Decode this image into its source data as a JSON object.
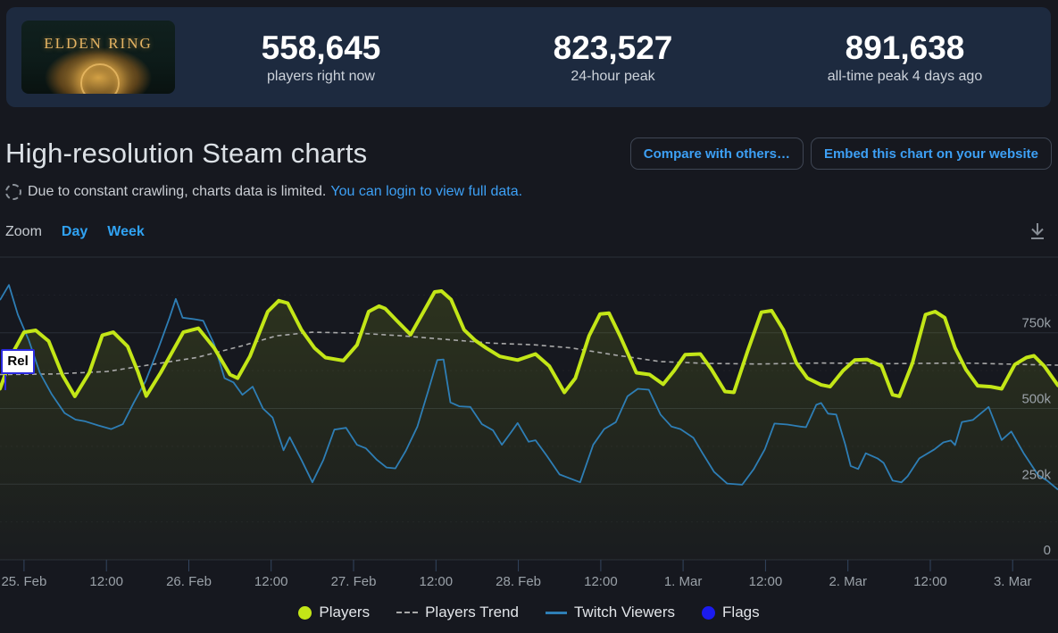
{
  "header": {
    "banner": {
      "title": "ELDEN RING"
    },
    "stats": [
      {
        "value": "558,645",
        "label": "players right now"
      },
      {
        "value": "823,527",
        "label": "24-hour peak"
      },
      {
        "value": "891,638",
        "label": "all-time peak 4 days ago"
      }
    ]
  },
  "page": {
    "title": "High-resolution Steam charts",
    "buttons": [
      "Compare with others…",
      "Embed this chart on your website"
    ],
    "notice": {
      "icon": "dashed-circle-icon",
      "text": "Due to constant crawling, charts data is limited.",
      "link": "You can login to view full data."
    },
    "zoom": {
      "label": "Zoom",
      "options": [
        "Day",
        "Week"
      ]
    },
    "icons": {
      "download": "arrow-down-to-line"
    }
  },
  "chart_data": {
    "type": "line",
    "title": "",
    "xlabel": "",
    "ylabel": "",
    "x_unit": "hours since 25 Feb 00:00",
    "y_unit": "thousands",
    "x_range_hours": [
      -3.5,
      150.6
    ],
    "ylim": [
      0,
      1000
    ],
    "grid": true,
    "legend_position": "bottom",
    "yticks": [
      {
        "v": 0,
        "label": "0"
      },
      {
        "v": 250,
        "label": "250k"
      },
      {
        "v": 500,
        "label": "500k"
      },
      {
        "v": 750,
        "label": "750k"
      },
      {
        "v": 1000,
        "label": ""
      }
    ],
    "yticks_minor": [
      125,
      375,
      625,
      875
    ],
    "xticks": [
      {
        "h": 0,
        "label": "25. Feb"
      },
      {
        "h": 12,
        "label": "12:00"
      },
      {
        "h": 24,
        "label": "26. Feb"
      },
      {
        "h": 36,
        "label": "12:00"
      },
      {
        "h": 48,
        "label": "27. Feb"
      },
      {
        "h": 60,
        "label": "12:00"
      },
      {
        "h": 72,
        "label": "28. Feb"
      },
      {
        "h": 84,
        "label": "12:00"
      },
      {
        "h": 96,
        "label": "1. Mar"
      },
      {
        "h": 108,
        "label": "12:00"
      },
      {
        "h": 120,
        "label": "2. Mar"
      },
      {
        "h": 132,
        "label": "12:00"
      },
      {
        "h": 144,
        "label": "3. Mar"
      }
    ],
    "colors": {
      "players": "#c3e617",
      "players_trend": "#a8a8a8",
      "twitch_viewers": "#2e7eb5",
      "flags": "#1b1bef"
    },
    "flags": [
      {
        "label": "Rel",
        "hour": -2.8
      }
    ],
    "series": {
      "players": [
        [
          -3.5,
          565
        ],
        [
          -1.5,
          690
        ],
        [
          0,
          752
        ],
        [
          1.7,
          758
        ],
        [
          3.6,
          722
        ],
        [
          5.6,
          610
        ],
        [
          7.4,
          540
        ],
        [
          9.5,
          618
        ],
        [
          11.4,
          742
        ],
        [
          13,
          752
        ],
        [
          15.1,
          705
        ],
        [
          16.6,
          620
        ],
        [
          17.8,
          541
        ],
        [
          19.9,
          618
        ],
        [
          23.2,
          752
        ],
        [
          25.4,
          765
        ],
        [
          27.7,
          700
        ],
        [
          30,
          612
        ],
        [
          31.1,
          600
        ],
        [
          32.9,
          672
        ],
        [
          35.5,
          820
        ],
        [
          37.1,
          856
        ],
        [
          38.4,
          848
        ],
        [
          40.4,
          760
        ],
        [
          42.3,
          700
        ],
        [
          43.9,
          668
        ],
        [
          46.5,
          658
        ],
        [
          48.5,
          710
        ],
        [
          50.2,
          820
        ],
        [
          51.7,
          838
        ],
        [
          52.6,
          830
        ],
        [
          54.3,
          790
        ],
        [
          56.3,
          744
        ],
        [
          58.2,
          820
        ],
        [
          59.8,
          885
        ],
        [
          60.8,
          888
        ],
        [
          62.2,
          860
        ],
        [
          64.1,
          760
        ],
        [
          65.7,
          725
        ],
        [
          67.3,
          700
        ],
        [
          69.3,
          672
        ],
        [
          71.9,
          660
        ],
        [
          74.5,
          680
        ],
        [
          76.5,
          640
        ],
        [
          78.7,
          553
        ],
        [
          80.3,
          600
        ],
        [
          82.3,
          740
        ],
        [
          83.9,
          812
        ],
        [
          85.2,
          815
        ],
        [
          86.8,
          740
        ],
        [
          89.2,
          618
        ],
        [
          91.1,
          612
        ],
        [
          93.1,
          580
        ],
        [
          94.7,
          625
        ],
        [
          96.3,
          678
        ],
        [
          98.5,
          680
        ],
        [
          100.1,
          630
        ],
        [
          102.1,
          556
        ],
        [
          103.4,
          553
        ],
        [
          105.4,
          690
        ],
        [
          107.4,
          818
        ],
        [
          108.9,
          823
        ],
        [
          110.6,
          760
        ],
        [
          112.5,
          650
        ],
        [
          114.1,
          600
        ],
        [
          116.1,
          578
        ],
        [
          117.4,
          572
        ],
        [
          119.3,
          625
        ],
        [
          121,
          660
        ],
        [
          122.8,
          662
        ],
        [
          124.9,
          640
        ],
        [
          126.5,
          545
        ],
        [
          127.5,
          540
        ],
        [
          129.4,
          650
        ],
        [
          131.3,
          810
        ],
        [
          132.7,
          820
        ],
        [
          134.1,
          800
        ],
        [
          135.6,
          700
        ],
        [
          137.2,
          628
        ],
        [
          138.9,
          575
        ],
        [
          140.8,
          572
        ],
        [
          142.4,
          565
        ],
        [
          144.3,
          645
        ],
        [
          146,
          668
        ],
        [
          147.1,
          674
        ],
        [
          148.6,
          640
        ],
        [
          150.6,
          576
        ]
      ],
      "players_trend": [
        [
          -3.5,
          612
        ],
        [
          4.3,
          614
        ],
        [
          12.1,
          622
        ],
        [
          18.6,
          645
        ],
        [
          25.1,
          668
        ],
        [
          31.6,
          706
        ],
        [
          36.8,
          740
        ],
        [
          42,
          752
        ],
        [
          48.5,
          749
        ],
        [
          55,
          740
        ],
        [
          61.5,
          728
        ],
        [
          68,
          716
        ],
        [
          74.5,
          710
        ],
        [
          79.7,
          700
        ],
        [
          86.2,
          676
        ],
        [
          92.7,
          655
        ],
        [
          99.2,
          649
        ],
        [
          107,
          647
        ],
        [
          116.1,
          650
        ],
        [
          126.5,
          648
        ],
        [
          136.9,
          650
        ],
        [
          146,
          645
        ],
        [
          150.6,
          643
        ]
      ],
      "twitch_viewers": [
        [
          -3.5,
          858
        ],
        [
          -2.2,
          908
        ],
        [
          -0.9,
          810
        ],
        [
          0.7,
          725
        ],
        [
          2.3,
          618
        ],
        [
          4,
          548
        ],
        [
          5.9,
          485
        ],
        [
          7.5,
          463
        ],
        [
          8.8,
          458
        ],
        [
          10.8,
          444
        ],
        [
          12.7,
          432
        ],
        [
          14.4,
          448
        ],
        [
          16,
          520
        ],
        [
          17.7,
          590
        ],
        [
          19.6,
          700
        ],
        [
          21.2,
          800
        ],
        [
          22.1,
          862
        ],
        [
          23.1,
          800
        ],
        [
          24.8,
          795
        ],
        [
          26.1,
          790
        ],
        [
          27.7,
          712
        ],
        [
          29.2,
          600
        ],
        [
          30.5,
          586
        ],
        [
          31.8,
          545
        ],
        [
          33.3,
          572
        ],
        [
          34.8,
          500
        ],
        [
          36.2,
          470
        ],
        [
          37.8,
          362
        ],
        [
          38.7,
          405
        ],
        [
          40.4,
          330
        ],
        [
          42,
          256
        ],
        [
          43.6,
          330
        ],
        [
          45.2,
          430
        ],
        [
          46.9,
          436
        ],
        [
          48.5,
          380
        ],
        [
          49.8,
          368
        ],
        [
          51.4,
          330
        ],
        [
          52.8,
          305
        ],
        [
          54.1,
          302
        ],
        [
          55.6,
          360
        ],
        [
          57.3,
          440
        ],
        [
          58.9,
          560
        ],
        [
          60.2,
          660
        ],
        [
          61.1,
          662
        ],
        [
          62.1,
          520
        ],
        [
          63.4,
          507
        ],
        [
          65,
          505
        ],
        [
          66.7,
          448
        ],
        [
          68.3,
          428
        ],
        [
          69.6,
          380
        ],
        [
          70.9,
          420
        ],
        [
          71.9,
          452
        ],
        [
          73.5,
          390
        ],
        [
          74.5,
          395
        ],
        [
          76.1,
          345
        ],
        [
          78,
          282
        ],
        [
          81,
          256
        ],
        [
          82.9,
          380
        ],
        [
          84.5,
          432
        ],
        [
          86.2,
          455
        ],
        [
          87.9,
          540
        ],
        [
          89.4,
          565
        ],
        [
          91,
          562
        ],
        [
          92.7,
          480
        ],
        [
          94.3,
          440
        ],
        [
          95.6,
          432
        ],
        [
          97.5,
          403
        ],
        [
          98.8,
          353
        ],
        [
          100.5,
          291
        ],
        [
          102.4,
          252
        ],
        [
          104.6,
          248
        ],
        [
          106.3,
          300
        ],
        [
          107.9,
          365
        ],
        [
          109.3,
          450
        ],
        [
          111.2,
          447
        ],
        [
          113.1,
          440
        ],
        [
          113.9,
          438
        ],
        [
          115.4,
          512
        ],
        [
          116.1,
          518
        ],
        [
          117.1,
          483
        ],
        [
          118.3,
          480
        ],
        [
          119.6,
          382
        ],
        [
          120.4,
          310
        ],
        [
          121.5,
          300
        ],
        [
          122.6,
          352
        ],
        [
          124.3,
          335
        ],
        [
          125.2,
          320
        ],
        [
          126.5,
          262
        ],
        [
          127.8,
          256
        ],
        [
          128.7,
          276
        ],
        [
          130.4,
          335
        ],
        [
          132.6,
          365
        ],
        [
          133.9,
          388
        ],
        [
          135,
          394
        ],
        [
          135.6,
          379
        ],
        [
          136.6,
          455
        ],
        [
          138.2,
          462
        ],
        [
          140.5,
          505
        ],
        [
          142.4,
          396
        ],
        [
          143.8,
          424
        ],
        [
          145.6,
          352
        ],
        [
          147.7,
          280
        ],
        [
          149,
          262
        ],
        [
          150.6,
          232
        ]
      ]
    }
  },
  "legend": [
    {
      "label": "Players",
      "marker": "circle",
      "color": "#c3e617"
    },
    {
      "label": "Players Trend",
      "marker": "dash",
      "color": "#a8a8a8"
    },
    {
      "label": "Twitch Viewers",
      "marker": "line",
      "color": "#2e7eb5"
    },
    {
      "label": "Flags",
      "marker": "circle",
      "color": "#1b1bef"
    }
  ]
}
